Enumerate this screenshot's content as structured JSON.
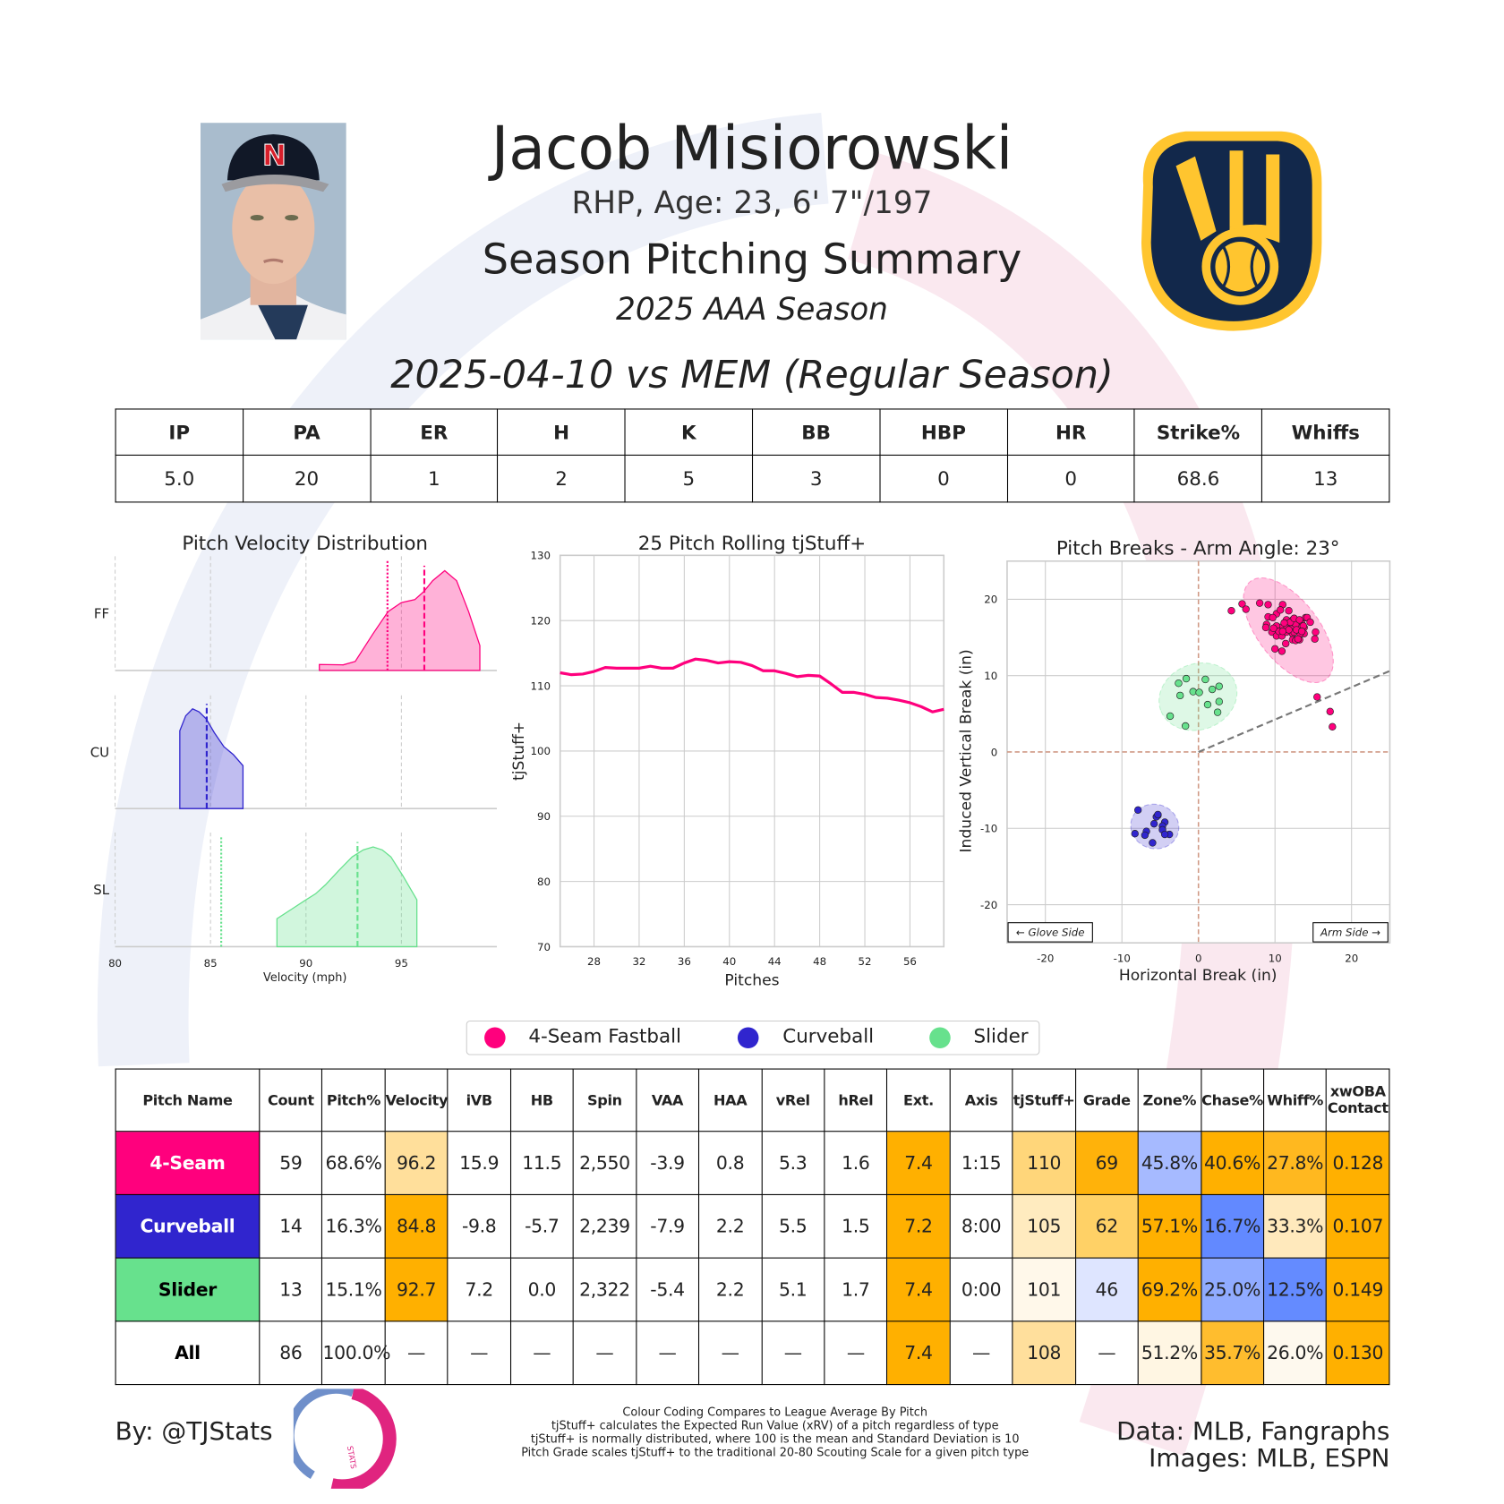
{
  "header": {
    "player_name": "Jacob Misiorowski",
    "bio": "RHP, Age: 23, 6' 7\"/197",
    "title": "Season Pitching Summary",
    "season": "2025 AAA Season",
    "game": "2025-04-10 vs MEM (Regular Season)",
    "photo_cap_letter": "N"
  },
  "stats": {
    "headers": [
      "IP",
      "PA",
      "ER",
      "H",
      "K",
      "BB",
      "HBP",
      "HR",
      "Strike%",
      "Whiffs"
    ],
    "values": [
      "5.0",
      "20",
      "1",
      "2",
      "5",
      "3",
      "0",
      "0",
      "68.6",
      "13"
    ]
  },
  "legend": [
    {
      "label": "4-Seam Fastball",
      "color": "#FF007D"
    },
    {
      "label": "Curveball",
      "color": "#3025CE"
    },
    {
      "label": "Slider",
      "color": "#67E18D"
    }
  ],
  "pitch_table": {
    "columns": [
      "Pitch Name",
      "Count",
      "Pitch%",
      "Velocity",
      "iVB",
      "HB",
      "Spin",
      "VAA",
      "HAA",
      "vRel",
      "hRel",
      "Ext.",
      "Axis",
      "tjStuff+",
      "Grade",
      "Zone%",
      "Chase%",
      "Whiff%",
      "xwOBA Contact"
    ],
    "rows": [
      {
        "name": "4-Seam",
        "name_bg": "#FF007D",
        "name_color": "#FFFFFF",
        "cells": [
          [
            "59",
            "#FFFFFF"
          ],
          [
            "68.6%",
            "#FFFFFF"
          ],
          [
            "96.2",
            "#FFDF9B"
          ],
          [
            "15.9",
            "#FFFFFF"
          ],
          [
            "11.5",
            "#FFFFFF"
          ],
          [
            "2,550",
            "#FFFFFF"
          ],
          [
            "-3.9",
            "#FFFFFF"
          ],
          [
            "0.8",
            "#FFFFFF"
          ],
          [
            "5.3",
            "#FFFFFF"
          ],
          [
            "1.6",
            "#FFFFFF"
          ],
          [
            "7.4",
            "#FFB000"
          ],
          [
            "1:15",
            "#FFFFFF"
          ],
          [
            "110",
            "#FFD67A"
          ],
          [
            "69",
            "#FFB20A"
          ],
          [
            "45.8%",
            "#A6BAFF"
          ],
          [
            "40.6%",
            "#FFB000"
          ],
          [
            "27.8%",
            "#FFB81F"
          ],
          [
            "0.128",
            "#FFB000"
          ]
        ]
      },
      {
        "name": "Curveball",
        "name_bg": "#3025CE",
        "name_color": "#FFFFFF",
        "cells": [
          [
            "14",
            "#FFFFFF"
          ],
          [
            "16.3%",
            "#FFFFFF"
          ],
          [
            "84.8",
            "#FFB000"
          ],
          [
            "-9.8",
            "#FFFFFF"
          ],
          [
            "-5.7",
            "#FFFFFF"
          ],
          [
            "2,239",
            "#FFFFFF"
          ],
          [
            "-7.9",
            "#FFFFFF"
          ],
          [
            "2.2",
            "#FFFFFF"
          ],
          [
            "5.5",
            "#FFFFFF"
          ],
          [
            "1.5",
            "#FFFFFF"
          ],
          [
            "7.2",
            "#FFB000"
          ],
          [
            "8:00",
            "#FFFFFF"
          ],
          [
            "105",
            "#FFEBBF"
          ],
          [
            "62",
            "#FFD166"
          ],
          [
            "57.1%",
            "#FFB000"
          ],
          [
            "16.7%",
            "#6289FF"
          ],
          [
            "33.3%",
            "#FFE9BC"
          ],
          [
            "0.107",
            "#FFB000"
          ]
        ]
      },
      {
        "name": "Slider",
        "name_bg": "#67E18D",
        "name_color": "#000000",
        "cells": [
          [
            "13",
            "#FFFFFF"
          ],
          [
            "15.1%",
            "#FFFFFF"
          ],
          [
            "92.7",
            "#FFB000"
          ],
          [
            "7.2",
            "#FFFFFF"
          ],
          [
            "0.0",
            "#FFFFFF"
          ],
          [
            "2,322",
            "#FFFFFF"
          ],
          [
            "-5.4",
            "#FFFFFF"
          ],
          [
            "2.2",
            "#FFFFFF"
          ],
          [
            "5.1",
            "#FFFFFF"
          ],
          [
            "1.7",
            "#FFFFFF"
          ],
          [
            "7.4",
            "#FFB000"
          ],
          [
            "0:00",
            "#FFFFFF"
          ],
          [
            "101",
            "#FFF8EA"
          ],
          [
            "46",
            "#DEE5FF"
          ],
          [
            "69.2%",
            "#FFB000"
          ],
          [
            "25.0%",
            "#90ABFF"
          ],
          [
            "12.5%",
            "#648BFF"
          ],
          [
            "0.149",
            "#FFB000"
          ]
        ]
      },
      {
        "name": "All",
        "name_bg": "#FFFFFF",
        "name_color": "#000000",
        "cells": [
          [
            "86",
            "#FFFFFF"
          ],
          [
            "100.0%",
            "#FFFFFF"
          ],
          [
            "—",
            "#FFFFFF"
          ],
          [
            "—",
            "#FFFFFF"
          ],
          [
            "—",
            "#FFFFFF"
          ],
          [
            "—",
            "#FFFFFF"
          ],
          [
            "—",
            "#FFFFFF"
          ],
          [
            "—",
            "#FFFFFF"
          ],
          [
            "—",
            "#FFFFFF"
          ],
          [
            "—",
            "#FFFFFF"
          ],
          [
            "7.4",
            "#FFB000"
          ],
          [
            "—",
            "#FFFFFF"
          ],
          [
            "108",
            "#FFDF9C"
          ],
          [
            "—",
            "#FFFFFF"
          ],
          [
            "51.2%",
            "#FFF6E3"
          ],
          [
            "35.7%",
            "#FFBD2E"
          ],
          [
            "26.0%",
            "#FEF9EE"
          ],
          [
            "0.130",
            "#FFB000"
          ]
        ]
      }
    ]
  },
  "footer": {
    "by": "By: @TJStats",
    "logo_text": "STATS",
    "notes": [
      "Colour Coding Compares to League Average By Pitch",
      "tjStuff+ calculates the Expected Run Value (xRV) of a pitch regardless of type",
      "tjStuff+ is normally distributed, where 100 is the mean and Standard Deviation is 10",
      "Pitch Grade scales tjStuff+ to the traditional 20-80 Scouting Scale for a given pitch type"
    ],
    "data_source": "Data: MLB, Fangraphs",
    "images_source": "Images: MLB, ESPN"
  },
  "chart_data": [
    {
      "type": "area",
      "title": "Pitch Velocity Distribution",
      "xlabel": "Velocity (mph)",
      "xlim": [
        80,
        100
      ],
      "x_ticks": [
        80,
        85,
        90,
        95
      ],
      "grid": true,
      "series": [
        {
          "name": "FF",
          "color": "#FF007D",
          "x": [
            90.7,
            91.95,
            92.58,
            93.52,
            94.3,
            95.0,
            95.7,
            96.17,
            96.64,
            97.27,
            97.89,
            98.52,
            99.11
          ],
          "density": [
            0.06,
            0.056,
            0.09,
            0.37,
            0.59,
            0.68,
            0.71,
            0.79,
            0.9,
            1.0,
            0.9,
            0.59,
            0.25
          ],
          "mean": 96.2,
          "league_avg": 94.27
        },
        {
          "name": "CU",
          "color": "#3025CE",
          "x": [
            83.39,
            83.7,
            84.06,
            84.4,
            84.77,
            85.2,
            85.7,
            86.2,
            86.7
          ],
          "density": [
            0.78,
            0.93,
            1.0,
            0.97,
            0.9,
            0.76,
            0.62,
            0.54,
            0.43
          ],
          "mean": 84.8,
          "league_avg": null
        },
        {
          "name": "SL",
          "color": "#67E18D",
          "x": [
            88.48,
            89.2,
            89.92,
            90.5,
            91.02,
            91.7,
            92.42,
            93.0,
            93.52,
            94.0,
            94.45,
            95.08,
            95.81
          ],
          "density": [
            0.28,
            0.37,
            0.46,
            0.53,
            0.62,
            0.76,
            0.9,
            0.97,
            1.0,
            0.97,
            0.9,
            0.71,
            0.47
          ],
          "mean": 92.7,
          "league_avg": 85.56
        }
      ]
    },
    {
      "type": "line",
      "title": "25 Pitch Rolling tjStuff+",
      "xlabel": "Pitches",
      "ylabel": "tjStuff+",
      "xlim": [
        25,
        59
      ],
      "ylim": [
        70,
        130
      ],
      "x_ticks": [
        28,
        32,
        36,
        40,
        44,
        48,
        52,
        56
      ],
      "y_ticks": [
        70,
        80,
        90,
        100,
        110,
        120,
        130
      ],
      "grid": true,
      "color": "#FF007D",
      "x": [
        25,
        26,
        27,
        28,
        29,
        30,
        31,
        32,
        33,
        34,
        35,
        36,
        37,
        38,
        39,
        40,
        41,
        42,
        43,
        44,
        45,
        46,
        47,
        48,
        49,
        50,
        51,
        52,
        53,
        54,
        55,
        56,
        57,
        58,
        59
      ],
      "y": [
        112.0,
        111.7,
        111.8,
        112.2,
        112.8,
        112.7,
        112.7,
        112.7,
        113.0,
        112.7,
        112.7,
        113.5,
        114.1,
        113.9,
        113.5,
        113.7,
        113.6,
        113.1,
        112.3,
        112.3,
        111.9,
        111.4,
        111.6,
        111.5,
        110.3,
        109.0,
        109.0,
        108.7,
        108.2,
        108.1,
        107.8,
        107.4,
        106.8,
        106.0,
        106.4
      ]
    },
    {
      "type": "scatter",
      "title": "Pitch Breaks - Arm Angle: 23°",
      "xlabel": "Horizontal Break (in)",
      "ylabel": "Induced Vertical Break (in)",
      "xlim": [
        -25,
        25
      ],
      "ylim": [
        -25,
        25
      ],
      "x_ticks": [
        -20,
        -10,
        0,
        10,
        20
      ],
      "y_ticks": [
        -20,
        -10,
        0,
        10,
        20
      ],
      "arm_angle_deg": 23,
      "grid": true,
      "annotations": {
        "glove_side": "← Glove Side",
        "arm_side": "Arm Side →"
      },
      "series": [
        {
          "name": "4-Seam Fastball",
          "color": "#FF007D",
          "points": [
            [
              4.3,
              18.5
            ],
            [
              5.7,
              19.4
            ],
            [
              6.2,
              18.7
            ],
            [
              8.0,
              19.5
            ],
            [
              9.1,
              19.3
            ],
            [
              11.0,
              19.3
            ],
            [
              11.8,
              18.5
            ],
            [
              10.2,
              18.1
            ],
            [
              10.7,
              18.6
            ],
            [
              9.1,
              17.7
            ],
            [
              9.7,
              17.6
            ],
            [
              8.9,
              16.7
            ],
            [
              8.8,
              16.3
            ],
            [
              9.6,
              15.7
            ],
            [
              10.2,
              15.2
            ],
            [
              10.9,
              15.2
            ],
            [
              10.0,
              13.5
            ],
            [
              10.9,
              13.2
            ],
            [
              11.3,
              16.6
            ],
            [
              11.5,
              17.3
            ],
            [
              12.3,
              17.3
            ],
            [
              13.0,
              16.9
            ],
            [
              13.5,
              16.8
            ],
            [
              14.0,
              17.6
            ],
            [
              11.5,
              15.7
            ],
            [
              12.3,
              15.5
            ],
            [
              13.0,
              16.3
            ],
            [
              13.8,
              16.3
            ],
            [
              12.3,
              14.7
            ],
            [
              12.7,
              14.6
            ],
            [
              13.2,
              14.7
            ],
            [
              13.8,
              15.5
            ],
            [
              10.7,
              16.3
            ],
            [
              10.2,
              16.5
            ],
            [
              12.1,
              16.3
            ],
            [
              14.2,
              17.6
            ],
            [
              15.3,
              15.7
            ],
            [
              15.2,
              14.8
            ],
            [
              13.3,
              15.5
            ],
            [
              12.7,
              16.7
            ],
            [
              12.1,
              16.1
            ],
            [
              13.7,
              16.5
            ],
            [
              14.6,
              17.0
            ],
            [
              13.0,
              14.8
            ],
            [
              11.4,
              14.2
            ],
            [
              12.5,
              15.7
            ],
            [
              15.5,
              7.2
            ],
            [
              17.2,
              5.3
            ],
            [
              17.5,
              3.3
            ],
            [
              11.8,
              16.0
            ],
            [
              12.0,
              17.0
            ],
            [
              10.5,
              15.8
            ],
            [
              11.2,
              16.9
            ],
            [
              12.8,
              16.0
            ],
            [
              13.5,
              15.8
            ],
            [
              11.0,
              15.8
            ],
            [
              12.5,
              17.5
            ],
            [
              9.8,
              16.2
            ],
            [
              13.2,
              17.3
            ]
          ]
        },
        {
          "name": "Curveball",
          "color": "#3025CE",
          "points": [
            [
              -7.9,
              -7.6
            ],
            [
              -5.3,
              -8.3
            ],
            [
              -5.5,
              -8.5
            ],
            [
              -4.4,
              -9.2
            ],
            [
              -5.8,
              -9.4
            ],
            [
              -4.7,
              -9.7
            ],
            [
              -4.7,
              -10.2
            ],
            [
              -6.8,
              -10.4
            ],
            [
              -8.3,
              -10.7
            ],
            [
              -7.0,
              -10.9
            ],
            [
              -3.8,
              -10.8
            ],
            [
              -4.4,
              -10.8
            ],
            [
              -6.0,
              -11.9
            ],
            [
              -5.3,
              -8.2
            ]
          ]
        },
        {
          "name": "Slider",
          "color": "#67E18D",
          "points": [
            [
              -2.6,
              9.0
            ],
            [
              -1.6,
              9.6
            ],
            [
              0.9,
              9.5
            ],
            [
              -2.4,
              7.4
            ],
            [
              -0.7,
              7.9
            ],
            [
              0.1,
              7.8
            ],
            [
              1.8,
              8.2
            ],
            [
              2.7,
              8.6
            ],
            [
              2.7,
              6.6
            ],
            [
              1.2,
              6.2
            ],
            [
              2.5,
              5.2
            ],
            [
              -3.7,
              4.7
            ],
            [
              -1.7,
              3.4
            ]
          ]
        }
      ]
    }
  ]
}
